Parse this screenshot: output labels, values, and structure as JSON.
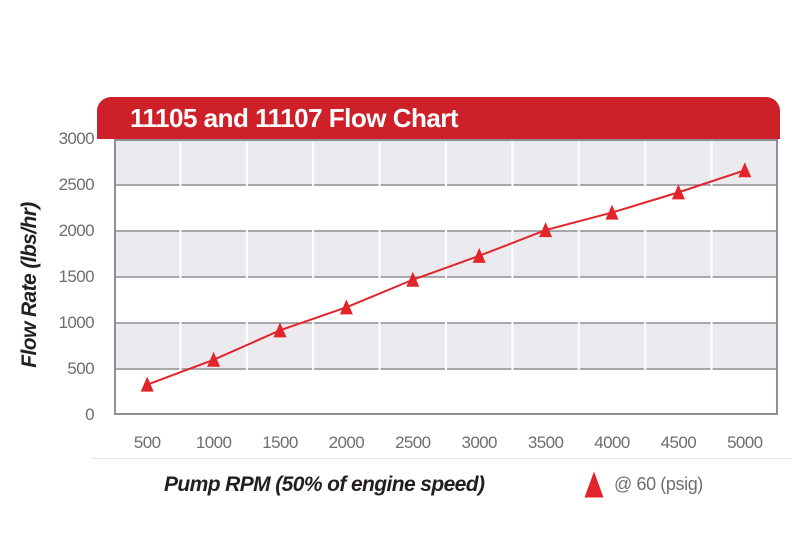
{
  "header": {
    "title": "11105 and 11107 Flow Chart"
  },
  "colors": {
    "header_red": "#ce2029",
    "accent_red": "#e2242b",
    "band_gray": "#ebebef",
    "grid_gray": "#8e8e94",
    "tick_gray": "#6d6e71",
    "text_black": "#231f20"
  },
  "chart_data": {
    "type": "line",
    "x": [
      500,
      1000,
      1500,
      2000,
      2500,
      3000,
      3500,
      4000,
      4500,
      5000
    ],
    "series": [
      {
        "name": "@ 60 (psig)",
        "marker": "triangle",
        "values": [
          330,
          600,
          920,
          1170,
          1470,
          1730,
          2010,
          2200,
          2420,
          2660
        ]
      }
    ],
    "title": "11105 and 11107 Flow Chart",
    "xlabel": "Pump RPM (50% of engine speed)",
    "ylabel": "Flow Rate (lbs/hr)",
    "ylim": [
      0,
      3000
    ],
    "ytick_step": 500,
    "grid": "horizontal-bands-alternating",
    "legend_position": "bottom-right"
  },
  "legend": {
    "label": "@ 60 (psig)"
  }
}
